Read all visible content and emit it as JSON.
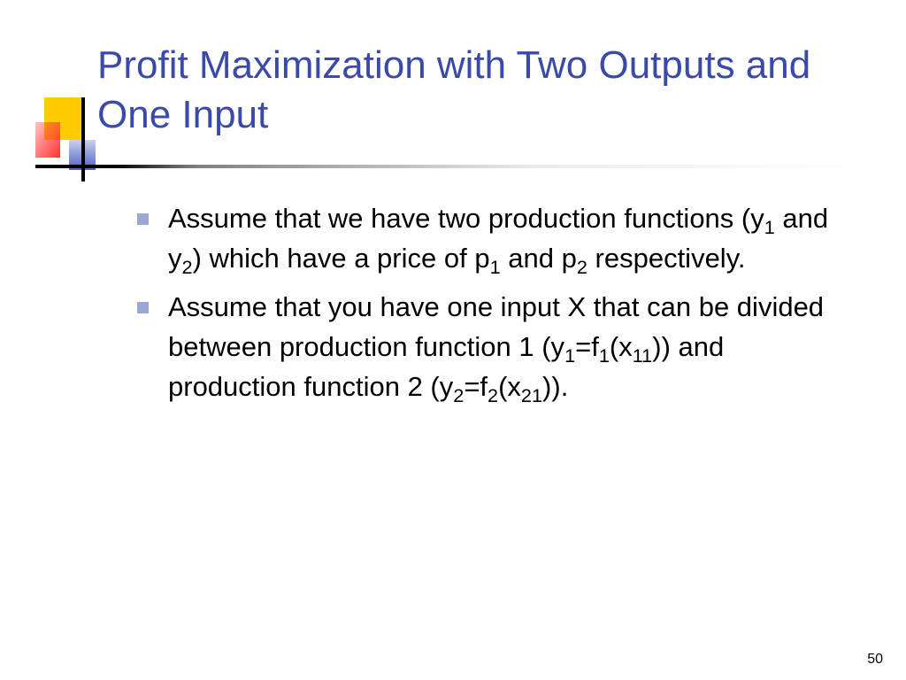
{
  "title": "Profit Maximization with Two Outputs and One Input",
  "bullets": [
    {
      "pre": "Assume that we have two production functions (y",
      "s1": "1",
      "mid1": " and y",
      "s2": "2",
      "mid2": ") which have a price of p",
      "s3": "1",
      "mid3": " and p",
      "s4": "2",
      "post": " respectively."
    },
    {
      "pre": "Assume that you have one input X that can be divided between production function 1 (y",
      "s1": "1",
      "mid1": "=f",
      "s2": "1",
      "mid2": "(x",
      "s3": "11",
      "mid3": ")) and production function 2 (y",
      "s4": "2",
      "mid4": "=f",
      "s5": "2",
      "mid5": "(x",
      "s6": "21",
      "post": "))."
    }
  ],
  "pageNumber": "50",
  "colors": {
    "title": "#3a4aa8",
    "bulletMarker": "#9aa8d8",
    "yellow": "#ffcc00",
    "red": "#ff3333",
    "blue": "#5060c0"
  }
}
